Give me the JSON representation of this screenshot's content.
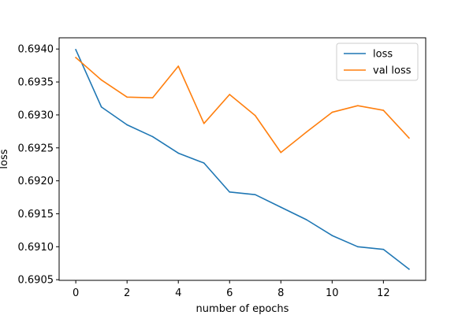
{
  "chart_data": {
    "type": "line",
    "title": "",
    "xlabel": "number of epochs",
    "ylabel": "loss",
    "xlim": [
      -0.65,
      13.65
    ],
    "ylim": [
      0.69049,
      0.69417
    ],
    "xticks": [
      0,
      2,
      4,
      6,
      8,
      10,
      12
    ],
    "xtick_labels": [
      "0",
      "2",
      "4",
      "6",
      "8",
      "10",
      "12"
    ],
    "yticks": [
      0.6905,
      0.691,
      0.6915,
      0.692,
      0.6925,
      0.693,
      0.6935,
      0.694
    ],
    "ytick_labels": [
      "0.6905",
      "0.6910",
      "0.6915",
      "0.6920",
      "0.6925",
      "0.6930",
      "0.6935",
      "0.6940"
    ],
    "grid": false,
    "legend_position": "upper-right",
    "x": [
      0,
      1,
      2,
      3,
      4,
      5,
      6,
      7,
      8,
      9,
      10,
      11,
      12,
      13
    ],
    "series": [
      {
        "name": "loss",
        "color": "#1f77b4",
        "values": [
          0.69399,
          0.69312,
          0.69285,
          0.69267,
          0.69242,
          0.69227,
          0.69183,
          0.69179,
          0.6916,
          0.69141,
          0.69117,
          0.691,
          0.69096,
          0.69066
        ]
      },
      {
        "name": "val loss",
        "color": "#ff7f0e",
        "values": [
          0.69387,
          0.69353,
          0.69327,
          0.69326,
          0.69374,
          0.69287,
          0.69331,
          0.69299,
          0.69243,
          0.69274,
          0.69304,
          0.69314,
          0.69307,
          0.69265
        ]
      }
    ]
  }
}
